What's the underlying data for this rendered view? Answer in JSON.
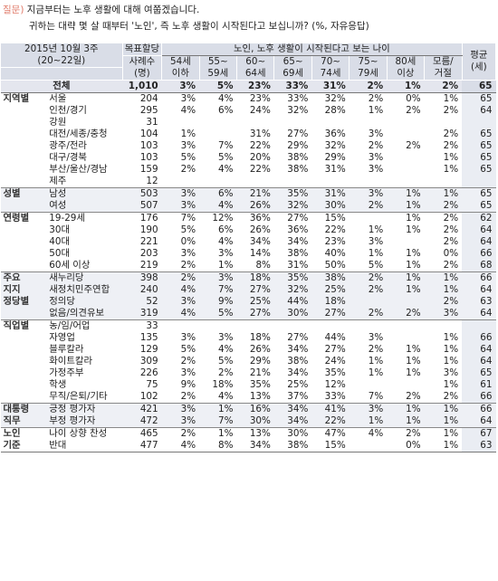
{
  "question": {
    "tag": "질문)",
    "line1": "지금부터는 노후 생활에 대해 여쭙겠습니다.",
    "line2": "귀하는 대략 몇 살 때부터 '노인', 즉 노후 생활이 시작된다고 보십니까? (%, 자유응답)"
  },
  "header": {
    "survey": "2015년 10월 3주",
    "survey_sub": "(20~22일)",
    "quota": "목표할당",
    "sample": "사례수",
    "sample_unit": "(명)",
    "group_title": "노인, 노후 생활이 시작된다고 보는 나이",
    "ages": [
      "54세 이하",
      "55~ 59세",
      "60~ 64세",
      "65~ 69세",
      "70~ 74세",
      "75~ 79세",
      "80세 이상",
      "모름/ 거절"
    ],
    "avg": "평균",
    "avg_unit": "(세)"
  },
  "rows": [
    {
      "group": "",
      "label": "전체",
      "n": "1,010",
      "v": [
        "3%",
        "5%",
        "23%",
        "33%",
        "31%",
        "2%",
        "1%",
        "2%"
      ],
      "avg": "65"
    },
    {
      "group": "지역별",
      "label": "서울",
      "n": "204",
      "v": [
        "3%",
        "4%",
        "23%",
        "33%",
        "32%",
        "2%",
        "0%",
        "1%"
      ],
      "avg": "65"
    },
    {
      "group": "",
      "label": "인천/경기",
      "n": "295",
      "v": [
        "4%",
        "6%",
        "24%",
        "32%",
        "28%",
        "1%",
        "2%",
        "2%"
      ],
      "avg": "64"
    },
    {
      "group": "",
      "label": "강원",
      "n": "31",
      "v": [
        "",
        "",
        "",
        "",
        "",
        "",
        "",
        ""
      ],
      "avg": ""
    },
    {
      "group": "",
      "label": "대전/세종/충청",
      "n": "104",
      "v": [
        "1%",
        "",
        "31%",
        "27%",
        "36%",
        "3%",
        "",
        "2%"
      ],
      "avg": "65"
    },
    {
      "group": "",
      "label": "광주/전라",
      "n": "103",
      "v": [
        "3%",
        "7%",
        "22%",
        "29%",
        "32%",
        "2%",
        "2%",
        "2%"
      ],
      "avg": "65"
    },
    {
      "group": "",
      "label": "대구/경북",
      "n": "103",
      "v": [
        "5%",
        "5%",
        "20%",
        "38%",
        "29%",
        "3%",
        "",
        "1%"
      ],
      "avg": "65"
    },
    {
      "group": "",
      "label": "부산/울산/경남",
      "n": "159",
      "v": [
        "2%",
        "4%",
        "22%",
        "38%",
        "31%",
        "3%",
        "",
        "1%"
      ],
      "avg": "65"
    },
    {
      "group": "",
      "label": "제주",
      "n": "12",
      "v": [
        "",
        "",
        "",
        "",
        "",
        "",
        "",
        ""
      ],
      "avg": ""
    },
    {
      "group": "성별",
      "label": "남성",
      "n": "503",
      "v": [
        "3%",
        "6%",
        "21%",
        "35%",
        "31%",
        "3%",
        "1%",
        "1%"
      ],
      "avg": "65"
    },
    {
      "group": "",
      "label": "여성",
      "n": "507",
      "v": [
        "3%",
        "4%",
        "26%",
        "32%",
        "30%",
        "2%",
        "1%",
        "2%"
      ],
      "avg": "65"
    },
    {
      "group": "연령별",
      "label": "19-29세",
      "n": "176",
      "v": [
        "7%",
        "12%",
        "36%",
        "27%",
        "15%",
        "",
        "1%",
        "2%"
      ],
      "avg": "62"
    },
    {
      "group": "",
      "label": "30대",
      "n": "190",
      "v": [
        "5%",
        "6%",
        "26%",
        "36%",
        "22%",
        "1%",
        "1%",
        "2%"
      ],
      "avg": "64"
    },
    {
      "group": "",
      "label": "40대",
      "n": "221",
      "v": [
        "0%",
        "4%",
        "34%",
        "34%",
        "23%",
        "3%",
        "",
        "2%"
      ],
      "avg": "64"
    },
    {
      "group": "",
      "label": "50대",
      "n": "203",
      "v": [
        "3%",
        "3%",
        "14%",
        "38%",
        "40%",
        "1%",
        "1%",
        "0%"
      ],
      "avg": "66"
    },
    {
      "group": "",
      "label": "60세 이상",
      "n": "219",
      "v": [
        "2%",
        "1%",
        "8%",
        "31%",
        "50%",
        "5%",
        "1%",
        "2%"
      ],
      "avg": "68"
    },
    {
      "group": "주요",
      "label": "새누리당",
      "n": "398",
      "v": [
        "2%",
        "3%",
        "18%",
        "35%",
        "38%",
        "2%",
        "1%",
        "1%"
      ],
      "avg": "66"
    },
    {
      "group": "지지",
      "label": "새정치민주연합",
      "n": "240",
      "v": [
        "4%",
        "7%",
        "27%",
        "32%",
        "25%",
        "2%",
        "1%",
        "1%"
      ],
      "avg": "64"
    },
    {
      "group": "정당별",
      "label": "정의당",
      "n": "52",
      "v": [
        "3%",
        "9%",
        "25%",
        "44%",
        "18%",
        "",
        "",
        "2%"
      ],
      "avg": "63"
    },
    {
      "group": "",
      "label": "없음/의견유보",
      "n": "319",
      "v": [
        "4%",
        "5%",
        "27%",
        "30%",
        "27%",
        "2%",
        "2%",
        "3%"
      ],
      "avg": "64"
    },
    {
      "group": "직업별",
      "label": "농/임/어업",
      "n": "33",
      "v": [
        "",
        "",
        "",
        "",
        "",
        "",
        "",
        ""
      ],
      "avg": ""
    },
    {
      "group": "",
      "label": "자영업",
      "n": "135",
      "v": [
        "3%",
        "3%",
        "18%",
        "27%",
        "44%",
        "3%",
        "",
        "1%"
      ],
      "avg": "66"
    },
    {
      "group": "",
      "label": "블루칼라",
      "n": "129",
      "v": [
        "5%",
        "4%",
        "26%",
        "34%",
        "27%",
        "2%",
        "1%",
        "1%"
      ],
      "avg": "64"
    },
    {
      "group": "",
      "label": "화이트칼라",
      "n": "309",
      "v": [
        "2%",
        "5%",
        "29%",
        "38%",
        "24%",
        "1%",
        "1%",
        "1%"
      ],
      "avg": "64"
    },
    {
      "group": "",
      "label": "가정주부",
      "n": "226",
      "v": [
        "3%",
        "2%",
        "21%",
        "34%",
        "35%",
        "1%",
        "1%",
        "3%"
      ],
      "avg": "65"
    },
    {
      "group": "",
      "label": "학생",
      "n": "75",
      "v": [
        "9%",
        "18%",
        "35%",
        "25%",
        "12%",
        "",
        "",
        "1%"
      ],
      "avg": "61"
    },
    {
      "group": "",
      "label": "무직/은퇴/기타",
      "n": "102",
      "v": [
        "2%",
        "4%",
        "13%",
        "37%",
        "33%",
        "7%",
        "2%",
        "2%"
      ],
      "avg": "66"
    },
    {
      "group": "대통령",
      "label": "긍정 평가자",
      "n": "421",
      "v": [
        "3%",
        "1%",
        "16%",
        "34%",
        "41%",
        "3%",
        "1%",
        "1%"
      ],
      "avg": "66"
    },
    {
      "group": "직무",
      "label": "부정 평가자",
      "n": "472",
      "v": [
        "3%",
        "7%",
        "30%",
        "34%",
        "22%",
        "1%",
        "1%",
        "1%"
      ],
      "avg": "64"
    },
    {
      "group": "노인",
      "label": "나이 상향 찬성",
      "n": "465",
      "v": [
        "2%",
        "1%",
        "13%",
        "30%",
        "47%",
        "4%",
        "2%",
        "1%"
      ],
      "avg": "67"
    },
    {
      "group": "기준",
      "label": "반대",
      "n": "477",
      "v": [
        "4%",
        "8%",
        "34%",
        "38%",
        "15%",
        "",
        "0%",
        "1%"
      ],
      "avg": "63"
    }
  ]
}
